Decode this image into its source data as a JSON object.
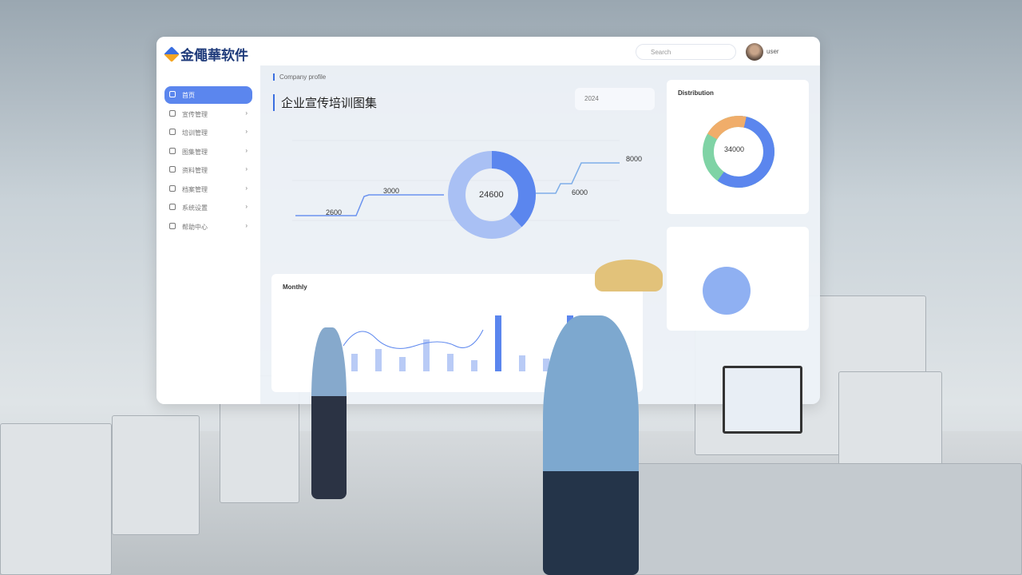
{
  "app": {
    "logo_text": "金僶華软件",
    "search_placeholder": "Search",
    "user_name": "user"
  },
  "sidebar": {
    "items": [
      {
        "label": "首页",
        "active": true
      },
      {
        "label": "宣传管理"
      },
      {
        "label": "培训管理"
      },
      {
        "label": "图集管理"
      },
      {
        "label": "资料管理"
      },
      {
        "label": "档案管理"
      },
      {
        "label": "系统设置"
      },
      {
        "label": "帮助中心"
      }
    ]
  },
  "main": {
    "breadcrumb": "Company profile",
    "title": "企业宣传培训图集",
    "toolbar_label": "2024"
  },
  "center_chart": {
    "center_value": "24600",
    "labels": [
      {
        "value": "2600"
      },
      {
        "value": "3000"
      },
      {
        "value": "6000"
      },
      {
        "value": "8000"
      }
    ]
  },
  "right_card": {
    "title": "Distribution",
    "center_value": "34000"
  },
  "bottom_card": {
    "title": "Monthly"
  },
  "colors": {
    "accent": "#5b86ee",
    "orange": "#f0ad6a",
    "green": "#7fd3a5",
    "light_blue": "#a9c0f4"
  }
}
